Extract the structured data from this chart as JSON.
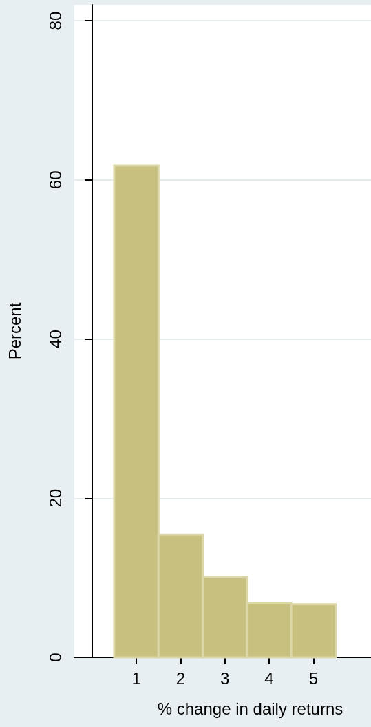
{
  "chart_data": {
    "type": "histogram",
    "xlabel": "% change in daily returns",
    "ylabel": "Percent",
    "bins": [
      0.5,
      1.5,
      2.5,
      3.5,
      4.5,
      5.5
    ],
    "values": [
      61.8,
      15.4,
      10.1,
      6.8,
      6.7
    ],
    "color": "#c8c07f",
    "xlim": [
      -0.4,
      6.3
    ],
    "xticks": [
      1,
      2,
      3,
      4,
      5
    ],
    "ylim": [
      0,
      82
    ],
    "yticks": [
      0,
      20,
      40,
      60,
      80
    ],
    "grid": "y"
  }
}
